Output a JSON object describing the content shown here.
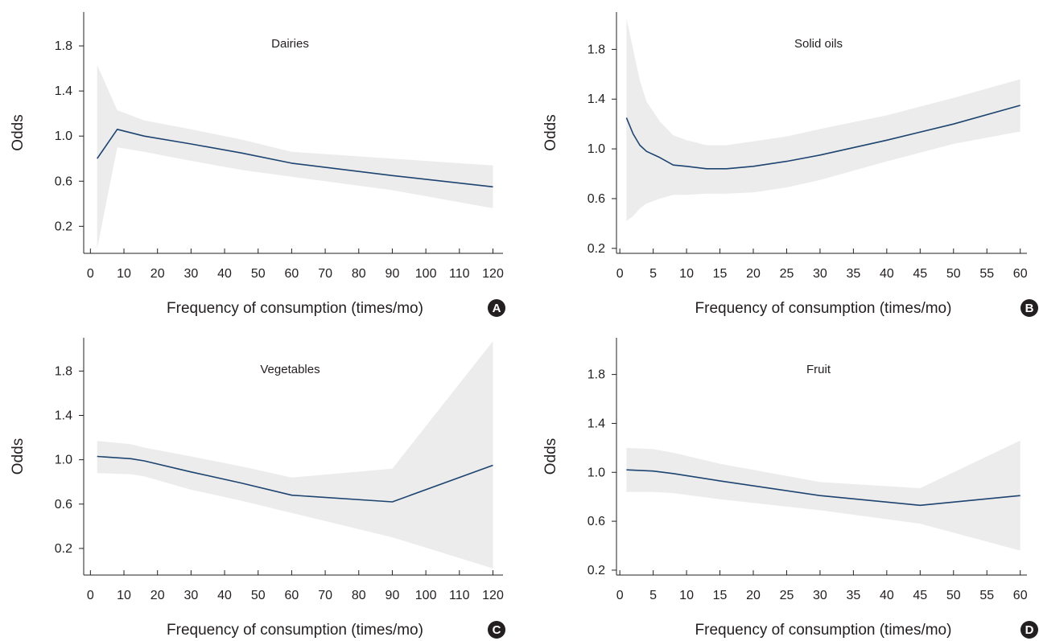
{
  "colors": {
    "line": "#1d4470",
    "band": "#ececec",
    "axis": "#231f20",
    "badge": "#231f20",
    "badge_text": "#ffffff"
  },
  "chart_data": [
    {
      "type": "line",
      "panel_label": "A",
      "title": "Dairies",
      "xlabel": "Frequency of consumption (times/mo)",
      "ylabel": "Odds",
      "xlim": [
        -2,
        123
      ],
      "ylim": [
        -0.04,
        2.1
      ],
      "x_ticks": [
        "0",
        "10",
        "20",
        "30",
        "40",
        "50",
        "60",
        "70",
        "80",
        "90",
        "100",
        "110",
        "120"
      ],
      "y_ticks": [
        "0.2",
        "0.6",
        "1.0",
        "1.4",
        "1.8"
      ],
      "series": [
        {
          "x": [
            2,
            8,
            16,
            30,
            45,
            60,
            90,
            120
          ],
          "y": [
            0.8,
            1.06,
            1.0,
            0.93,
            0.85,
            0.76,
            0.65,
            0.55
          ],
          "ci_lower": [
            0.0,
            0.9,
            0.86,
            0.78,
            0.7,
            0.64,
            0.52,
            0.36
          ],
          "ci_upper": [
            1.63,
            1.23,
            1.14,
            1.06,
            0.97,
            0.86,
            0.8,
            0.74
          ]
        }
      ],
      "grid": false
    },
    {
      "type": "line",
      "panel_label": "B",
      "title": "Solid oils",
      "xlabel": "Frequency of consumption (times/mo)",
      "ylabel": "Odds",
      "xlim": [
        -0.5,
        61
      ],
      "ylim": [
        0.16,
        2.1
      ],
      "x_ticks": [
        "0",
        "5",
        "10",
        "15",
        "20",
        "25",
        "30",
        "35",
        "40",
        "45",
        "50",
        "55",
        "60"
      ],
      "y_ticks": [
        "0.2",
        "0.6",
        "1.0",
        "1.4",
        "1.8"
      ],
      "series": [
        {
          "x": [
            1,
            2,
            3,
            4,
            6,
            8,
            10,
            13,
            16,
            20,
            25,
            30,
            40,
            50,
            60
          ],
          "y": [
            1.25,
            1.12,
            1.03,
            0.98,
            0.93,
            0.87,
            0.86,
            0.84,
            0.84,
            0.86,
            0.9,
            0.95,
            1.07,
            1.2,
            1.35
          ],
          "ci_lower": [
            0.42,
            0.46,
            0.52,
            0.56,
            0.6,
            0.63,
            0.63,
            0.64,
            0.64,
            0.65,
            0.69,
            0.75,
            0.9,
            1.04,
            1.14
          ],
          "ci_upper": [
            2.05,
            1.8,
            1.55,
            1.38,
            1.22,
            1.11,
            1.07,
            1.03,
            1.03,
            1.06,
            1.1,
            1.16,
            1.27,
            1.41,
            1.56
          ]
        }
      ],
      "grid": false
    },
    {
      "type": "line",
      "panel_label": "C",
      "title": "Vegetables",
      "xlabel": "Frequency of consumption (times/mo)",
      "ylabel": "Odds",
      "xlim": [
        -2,
        123
      ],
      "ylim": [
        -0.04,
        2.1
      ],
      "x_ticks": [
        "0",
        "10",
        "20",
        "30",
        "40",
        "50",
        "60",
        "70",
        "80",
        "90",
        "100",
        "110",
        "120"
      ],
      "y_ticks": [
        "0.2",
        "0.6",
        "1.0",
        "1.4",
        "1.8"
      ],
      "series": [
        {
          "x": [
            2,
            12,
            16,
            30,
            45,
            60,
            90,
            120
          ],
          "y": [
            1.03,
            1.01,
            0.99,
            0.89,
            0.79,
            0.68,
            0.62,
            0.95
          ],
          "ci_lower": [
            0.88,
            0.87,
            0.85,
            0.73,
            0.63,
            0.52,
            0.3,
            0.02
          ],
          "ci_upper": [
            1.17,
            1.14,
            1.11,
            1.03,
            0.94,
            0.84,
            0.92,
            2.07
          ]
        }
      ],
      "grid": false
    },
    {
      "type": "line",
      "panel_label": "D",
      "title": "Fruit",
      "xlabel": "Frequency of consumption (times/mo)",
      "ylabel": "Odds",
      "xlim": [
        -0.5,
        61
      ],
      "ylim": [
        0.16,
        2.1
      ],
      "x_ticks": [
        "0",
        "5",
        "10",
        "15",
        "20",
        "25",
        "30",
        "35",
        "40",
        "45",
        "50",
        "55",
        "60"
      ],
      "y_ticks": [
        "0.2",
        "0.6",
        "1.0",
        "1.4",
        "1.8"
      ],
      "series": [
        {
          "x": [
            1,
            5,
            8,
            15,
            30,
            45,
            60
          ],
          "y": [
            1.02,
            1.01,
            0.99,
            0.93,
            0.81,
            0.73,
            0.81
          ],
          "ci_lower": [
            0.84,
            0.84,
            0.83,
            0.78,
            0.69,
            0.58,
            0.36
          ],
          "ci_upper": [
            1.2,
            1.19,
            1.16,
            1.07,
            0.92,
            0.87,
            1.26
          ]
        }
      ],
      "grid": false
    }
  ]
}
